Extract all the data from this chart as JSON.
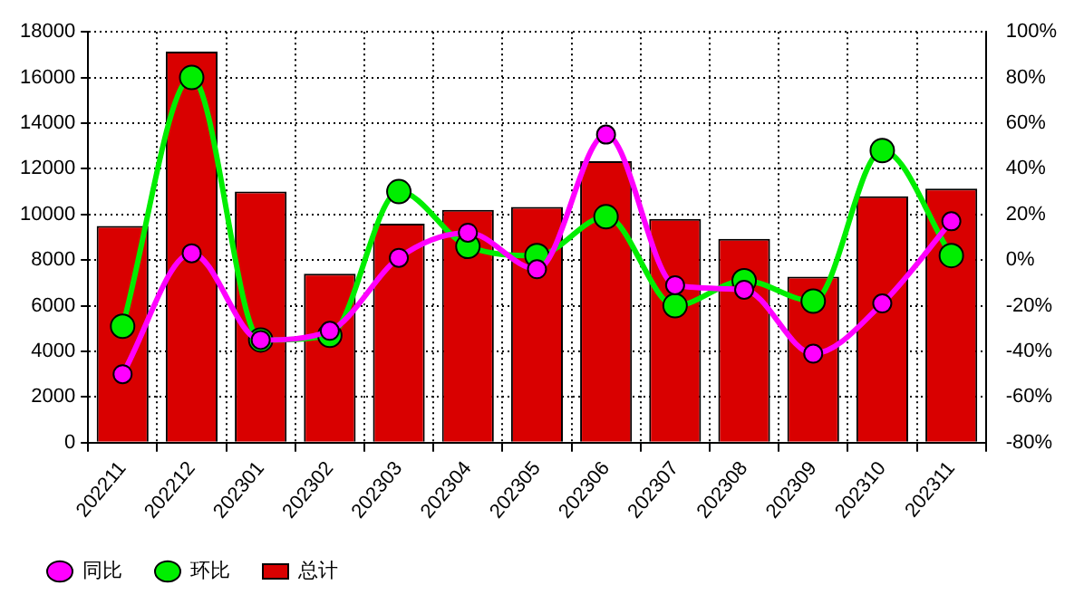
{
  "chart_data": {
    "type": "bar",
    "categories": [
      "202211",
      "202212",
      "202301",
      "202302",
      "202303",
      "202304",
      "202305",
      "202306",
      "202307",
      "202308",
      "202309",
      "202310",
      "202311"
    ],
    "series": [
      {
        "name": "同比",
        "type": "line",
        "axis": "y2",
        "color": "#ff00ff",
        "values": [
          -50,
          3,
          -35,
          -31,
          1,
          12,
          -4,
          55,
          -11,
          -13,
          -41,
          -19,
          17
        ]
      },
      {
        "name": "环比",
        "type": "line",
        "axis": "y2",
        "color": "#00ee00",
        "values": [
          -29,
          80,
          -35,
          -33,
          30,
          6,
          2,
          19,
          -20,
          -9,
          -18,
          48,
          2
        ]
      },
      {
        "name": "总计",
        "color": "#d90000",
        "values": [
          9500,
          17130,
          11000,
          7400,
          9600,
          10200,
          10330,
          12330,
          9800,
          8930,
          7270,
          10800,
          11130
        ]
      }
    ],
    "ylim": [
      0,
      18000
    ],
    "yticks": [
      0,
      2000,
      4000,
      6000,
      8000,
      10000,
      12000,
      14000,
      16000,
      18000
    ],
    "y2lim": [
      -80,
      100
    ],
    "y2ticks": [
      {
        "value": -80,
        "label": "-80%"
      },
      {
        "value": -60,
        "label": "-60%"
      },
      {
        "value": -40,
        "label": "-40%"
      },
      {
        "value": -20,
        "label": "-20%"
      },
      {
        "value": 0,
        "label": "0%"
      },
      {
        "value": 20,
        "label": "20%"
      },
      {
        "value": 40,
        "label": "40%"
      },
      {
        "value": 60,
        "label": "60%"
      },
      {
        "value": 80,
        "label": "80%"
      },
      {
        "value": 100,
        "label": "100%"
      }
    ],
    "grid": true,
    "legend": "bottom left",
    "marker": "circle"
  }
}
